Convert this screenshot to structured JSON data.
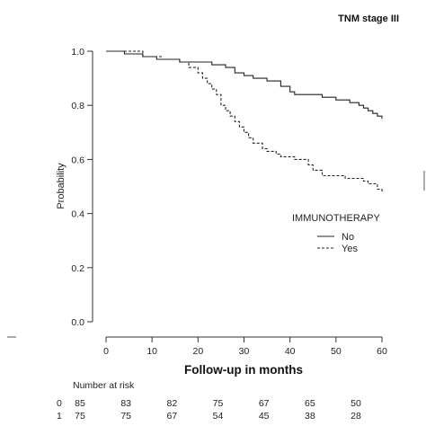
{
  "chart_data": {
    "type": "line",
    "title": "TNM stage III",
    "xlabel": "Follow-up in months",
    "ylabel": "Probability",
    "xlim": [
      0,
      60
    ],
    "ylim": [
      0,
      1.0
    ],
    "x_ticks": [
      0,
      10,
      20,
      30,
      40,
      50,
      60
    ],
    "y_ticks": [
      "0.0",
      "0.2",
      "0.4",
      "0.6",
      "0.8",
      "1.0"
    ],
    "grid": false,
    "legend": {
      "title": "IMMUNOTHERAPY",
      "placement": "right-middle",
      "entries": [
        {
          "label": "No",
          "style": "solid"
        },
        {
          "label": "Yes",
          "style": "dashed"
        }
      ]
    },
    "series": [
      {
        "name": "No",
        "style": "solid",
        "points": [
          [
            0,
            1.0
          ],
          [
            4,
            0.99
          ],
          [
            8,
            0.98
          ],
          [
            11,
            0.97
          ],
          [
            14,
            0.97
          ],
          [
            16,
            0.96
          ],
          [
            21,
            0.96
          ],
          [
            23,
            0.95
          ],
          [
            26,
            0.94
          ],
          [
            28,
            0.92
          ],
          [
            30,
            0.91
          ],
          [
            32,
            0.9
          ],
          [
            35,
            0.89
          ],
          [
            38,
            0.87
          ],
          [
            40,
            0.85
          ],
          [
            41,
            0.84
          ],
          [
            47,
            0.83
          ],
          [
            50,
            0.82
          ],
          [
            53,
            0.81
          ],
          [
            55,
            0.8
          ],
          [
            56,
            0.79
          ],
          [
            57,
            0.78
          ],
          [
            58,
            0.77
          ],
          [
            59,
            0.76
          ],
          [
            60,
            0.75
          ]
        ]
      },
      {
        "name": "Yes",
        "style": "dashed",
        "points": [
          [
            0,
            1.0
          ],
          [
            5,
            1.0
          ],
          [
            8,
            0.98
          ],
          [
            10,
            0.98
          ],
          [
            12,
            0.97
          ],
          [
            16,
            0.96
          ],
          [
            18,
            0.94
          ],
          [
            20,
            0.92
          ],
          [
            21,
            0.9
          ],
          [
            22,
            0.88
          ],
          [
            23,
            0.86
          ],
          [
            24,
            0.84
          ],
          [
            25,
            0.8
          ],
          [
            26,
            0.78
          ],
          [
            27,
            0.76
          ],
          [
            28,
            0.74
          ],
          [
            29,
            0.72
          ],
          [
            30,
            0.7
          ],
          [
            31,
            0.68
          ],
          [
            32,
            0.66
          ],
          [
            34,
            0.64
          ],
          [
            35,
            0.63
          ],
          [
            37,
            0.62
          ],
          [
            38,
            0.61
          ],
          [
            41,
            0.6
          ],
          [
            44,
            0.58
          ],
          [
            45,
            0.56
          ],
          [
            47,
            0.54
          ],
          [
            52,
            0.53
          ],
          [
            56,
            0.52
          ],
          [
            57,
            0.51
          ],
          [
            59,
            0.49
          ],
          [
            60,
            0.48
          ]
        ]
      }
    ],
    "risk_table": {
      "heading": "Number at risk",
      "rows": [
        {
          "group": "0",
          "values": [
            "85",
            "83",
            "82",
            "75",
            "67",
            "65",
            "50"
          ]
        },
        {
          "group": "1",
          "values": [
            "75",
            "75",
            "67",
            "54",
            "45",
            "38",
            "28"
          ]
        }
      ]
    }
  }
}
